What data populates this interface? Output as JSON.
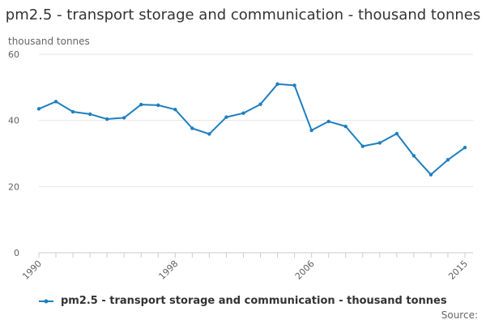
{
  "chart_data": {
    "type": "line",
    "title": "pm2.5 - transport storage and communication - thousand tonnes",
    "ylabel": "thousand tonnes",
    "xlabel": "",
    "xlim": [
      1990,
      2015
    ],
    "ylim": [
      0,
      60
    ],
    "x_ticks": [
      1990,
      1998,
      2006,
      2015
    ],
    "y_ticks": [
      0,
      20,
      40,
      60
    ],
    "grid": "horizontal",
    "legend_position": "bottom",
    "color": "#1f7fbf",
    "series": [
      {
        "name": "pm2.5 - transport storage and communication - thousand tonnes",
        "x": [
          1990,
          1991,
          1992,
          1993,
          1994,
          1995,
          1996,
          1997,
          1998,
          1999,
          2000,
          2001,
          2002,
          2003,
          2004,
          2005,
          2006,
          2007,
          2008,
          2009,
          2010,
          2011,
          2012,
          2013,
          2014,
          2015
        ],
        "values": [
          43.5,
          45.7,
          42.6,
          41.9,
          40.4,
          40.8,
          44.8,
          44.6,
          43.3,
          37.6,
          35.9,
          41.0,
          42.2,
          44.9,
          51.0,
          50.6,
          37.0,
          39.7,
          38.2,
          32.2,
          33.2,
          36.0,
          29.3,
          23.6,
          28.1,
          31.8
        ]
      }
    ]
  },
  "source_label": "Source:"
}
